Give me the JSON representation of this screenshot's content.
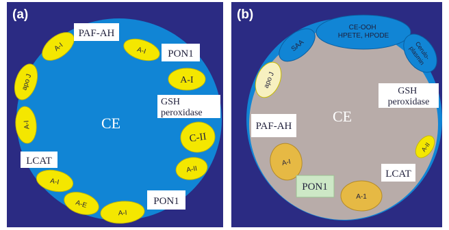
{
  "colors": {
    "background": "#2b2b83",
    "particle_a": "#1185d5",
    "particle_b_shell": "#1185d5",
    "particle_b_core": "#b8aca9",
    "apo_yellow": "#f4e700",
    "apo_yellow_stroke": "#c7ba00",
    "dimmed_apo": "#e6b944",
    "apoJ_b": "#f7f0c0",
    "box_fill": "#ffffff",
    "pon1_b_box": "#cde8c6",
    "white_text": "#ffffff",
    "dark_text": "#1f1f3a"
  },
  "panel_a": {
    "letter": "(a)",
    "core_label": "CE",
    "apolipoproteins": [
      "A-I",
      "A-I",
      "apo J",
      "A-I",
      "A-I",
      "A-E",
      "A-I",
      "A-I",
      "C-II",
      "A-II"
    ],
    "boxes": [
      "PAF-AH",
      "PON1",
      "GSH peroxidase",
      "LCAT",
      "PON1"
    ]
  },
  "panel_b": {
    "letter": "(b)",
    "core_label": "CE",
    "surface_proteins": [
      "SAA",
      "CE-OOH HPETE, HPODE",
      "Cerulo-plasmin"
    ],
    "apolipoproteins": [
      "apo J",
      "A-I",
      "A-1",
      "A-II"
    ],
    "boxes": [
      "GSH peroxidase",
      "PAF-AH",
      "LCAT",
      "PON1"
    ]
  }
}
